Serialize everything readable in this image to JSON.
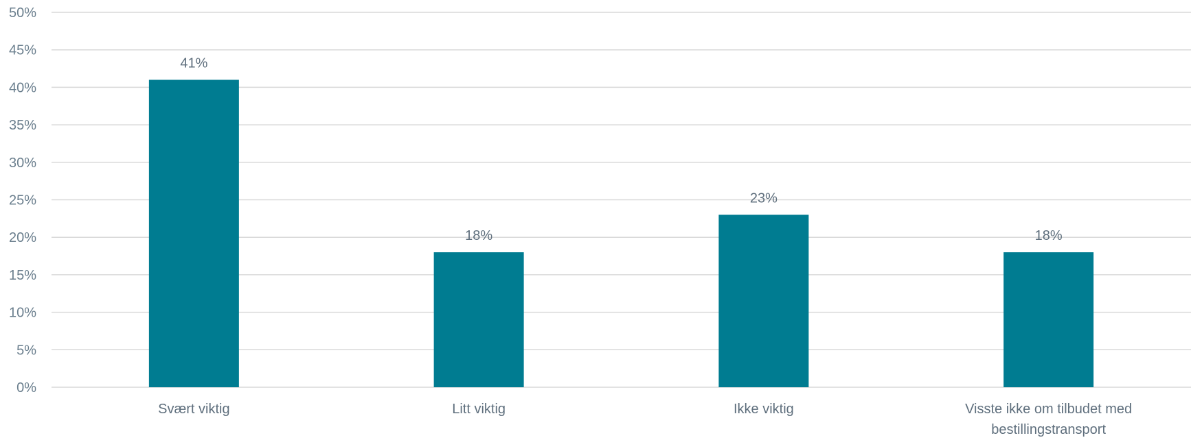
{
  "chart_data": {
    "type": "bar",
    "categories": [
      [
        "Svært viktig"
      ],
      [
        "Litt viktig"
      ],
      [
        "Ikke viktig"
      ],
      [
        "Visste ikke om tilbudet med",
        "bestillingstransport"
      ]
    ],
    "values": [
      41,
      18,
      23,
      18
    ],
    "data_labels": [
      "41%",
      "18%",
      "23%",
      "18%"
    ],
    "y_ticks": [
      0,
      5,
      10,
      15,
      20,
      25,
      30,
      35,
      40,
      45,
      50
    ],
    "y_tick_labels": [
      "0%",
      "5%",
      "10%",
      "15%",
      "20%",
      "25%",
      "30%",
      "35%",
      "40%",
      "45%",
      "50%"
    ],
    "ylim": [
      0,
      50
    ],
    "grid": true,
    "legend": "none",
    "bar_color": "#007c91"
  }
}
